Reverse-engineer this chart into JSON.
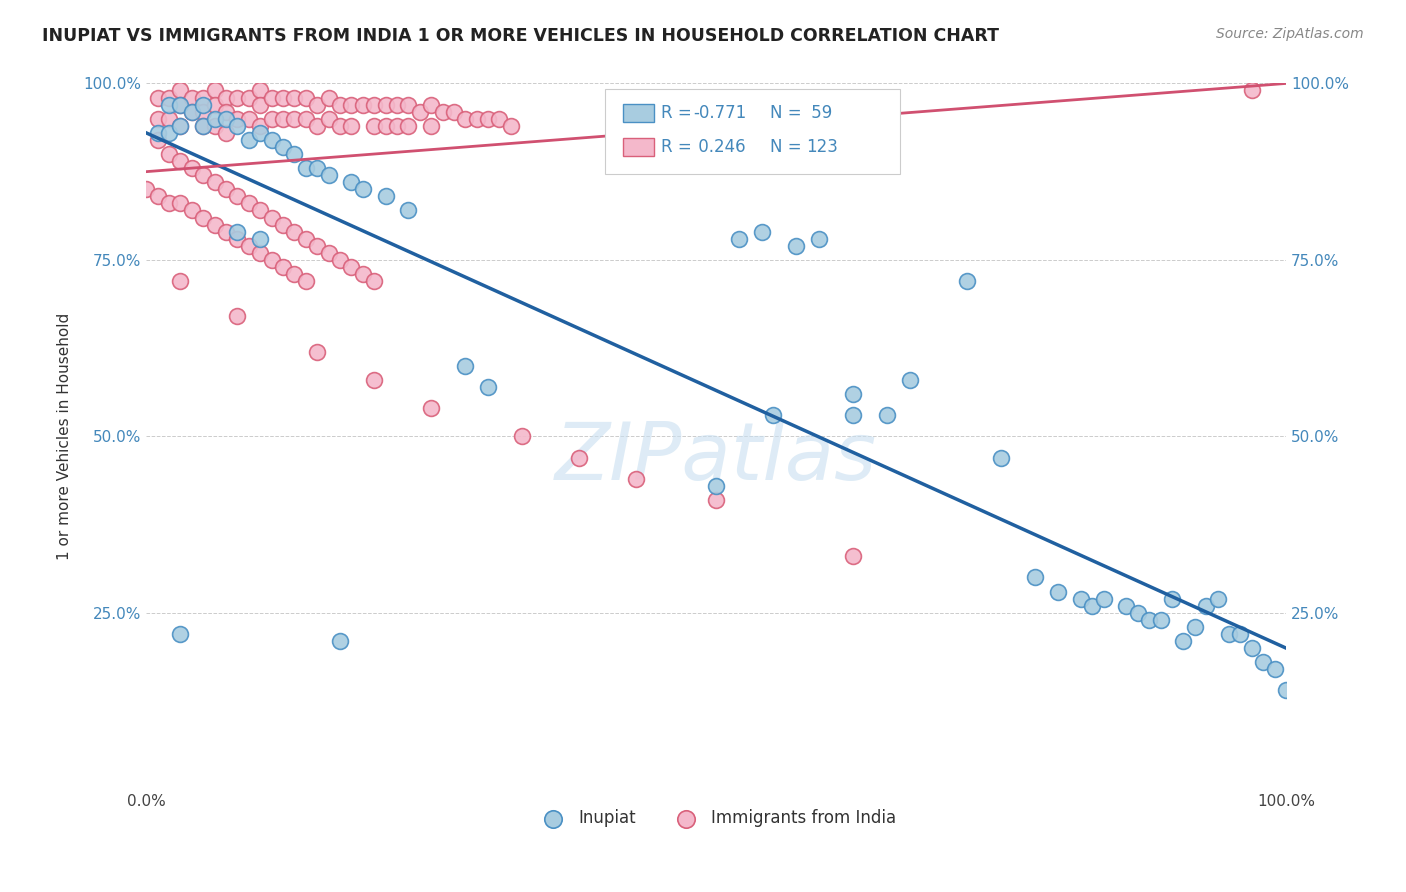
{
  "title": "INUPIAT VS IMMIGRANTS FROM INDIA 1 OR MORE VEHICLES IN HOUSEHOLD CORRELATION CHART",
  "source": "Source: ZipAtlas.com",
  "ylabel": "1 or more Vehicles in Household",
  "xlim": [
    0.0,
    1.0
  ],
  "ylim": [
    0.0,
    1.0
  ],
  "color_inupiat_fill": "#a8cce0",
  "color_inupiat_edge": "#4a90c4",
  "color_india_fill": "#f4b8cb",
  "color_india_edge": "#d9607a",
  "color_line_inupiat": "#2060a0",
  "color_line_india": "#d05070",
  "watermark": "ZIPatlas",
  "inupiat_line_x0": 0.0,
  "inupiat_line_y0": 0.93,
  "inupiat_line_x1": 1.0,
  "inupiat_line_y1": 0.2,
  "india_line_x0": 0.0,
  "india_line_y0": 0.875,
  "india_line_x1": 1.0,
  "india_line_y1": 1.0,
  "inupiat_x": [
    0.01,
    0.02,
    0.02,
    0.03,
    0.03,
    0.04,
    0.05,
    0.05,
    0.06,
    0.07,
    0.08,
    0.09,
    0.1,
    0.11,
    0.12,
    0.13,
    0.14,
    0.15,
    0.16,
    0.18,
    0.19,
    0.21,
    0.23,
    0.08,
    0.1,
    0.52,
    0.54,
    0.57,
    0.59,
    0.62,
    0.65,
    0.72,
    0.78,
    0.8,
    0.82,
    0.83,
    0.84,
    0.86,
    0.87,
    0.88,
    0.89,
    0.9,
    0.91,
    0.92,
    0.93,
    0.94,
    0.95,
    0.96,
    0.97,
    0.98,
    0.99,
    1.0,
    0.03,
    0.17,
    0.28,
    0.3,
    0.5,
    0.55,
    0.62,
    0.67,
    0.75
  ],
  "inupiat_y": [
    0.93,
    0.97,
    0.93,
    0.97,
    0.94,
    0.96,
    0.97,
    0.94,
    0.95,
    0.95,
    0.94,
    0.92,
    0.93,
    0.92,
    0.91,
    0.9,
    0.88,
    0.88,
    0.87,
    0.86,
    0.85,
    0.84,
    0.82,
    0.79,
    0.78,
    0.78,
    0.79,
    0.77,
    0.78,
    0.53,
    0.53,
    0.72,
    0.3,
    0.28,
    0.27,
    0.26,
    0.27,
    0.26,
    0.25,
    0.24,
    0.24,
    0.27,
    0.21,
    0.23,
    0.26,
    0.27,
    0.22,
    0.22,
    0.2,
    0.18,
    0.17,
    0.14,
    0.22,
    0.21,
    0.6,
    0.57,
    0.43,
    0.53,
    0.56,
    0.58,
    0.47
  ],
  "india_x": [
    0.01,
    0.01,
    0.02,
    0.02,
    0.03,
    0.03,
    0.03,
    0.04,
    0.04,
    0.05,
    0.05,
    0.05,
    0.06,
    0.06,
    0.06,
    0.07,
    0.07,
    0.07,
    0.08,
    0.08,
    0.09,
    0.09,
    0.1,
    0.1,
    0.1,
    0.11,
    0.11,
    0.12,
    0.12,
    0.13,
    0.13,
    0.14,
    0.14,
    0.15,
    0.15,
    0.16,
    0.16,
    0.17,
    0.17,
    0.18,
    0.18,
    0.19,
    0.2,
    0.2,
    0.21,
    0.21,
    0.22,
    0.22,
    0.23,
    0.23,
    0.24,
    0.25,
    0.25,
    0.26,
    0.27,
    0.28,
    0.29,
    0.3,
    0.31,
    0.32,
    0.01,
    0.02,
    0.03,
    0.04,
    0.05,
    0.06,
    0.07,
    0.08,
    0.09,
    0.1,
    0.11,
    0.12,
    0.13,
    0.14,
    0.15,
    0.16,
    0.17,
    0.18,
    0.19,
    0.2,
    0.0,
    0.01,
    0.02,
    0.03,
    0.04,
    0.05,
    0.06,
    0.07,
    0.08,
    0.09,
    0.1,
    0.11,
    0.12,
    0.13,
    0.14,
    0.03,
    0.08,
    0.15,
    0.2,
    0.25,
    0.33,
    0.38,
    0.43,
    0.5,
    0.62,
    0.97
  ],
  "india_y": [
    0.98,
    0.95,
    0.98,
    0.95,
    0.99,
    0.97,
    0.94,
    0.98,
    0.96,
    0.98,
    0.96,
    0.94,
    0.99,
    0.97,
    0.94,
    0.98,
    0.96,
    0.93,
    0.98,
    0.95,
    0.98,
    0.95,
    0.99,
    0.97,
    0.94,
    0.98,
    0.95,
    0.98,
    0.95,
    0.98,
    0.95,
    0.98,
    0.95,
    0.97,
    0.94,
    0.98,
    0.95,
    0.97,
    0.94,
    0.97,
    0.94,
    0.97,
    0.97,
    0.94,
    0.97,
    0.94,
    0.97,
    0.94,
    0.97,
    0.94,
    0.96,
    0.97,
    0.94,
    0.96,
    0.96,
    0.95,
    0.95,
    0.95,
    0.95,
    0.94,
    0.92,
    0.9,
    0.89,
    0.88,
    0.87,
    0.86,
    0.85,
    0.84,
    0.83,
    0.82,
    0.81,
    0.8,
    0.79,
    0.78,
    0.77,
    0.76,
    0.75,
    0.74,
    0.73,
    0.72,
    0.85,
    0.84,
    0.83,
    0.83,
    0.82,
    0.81,
    0.8,
    0.79,
    0.78,
    0.77,
    0.76,
    0.75,
    0.74,
    0.73,
    0.72,
    0.72,
    0.67,
    0.62,
    0.58,
    0.54,
    0.5,
    0.47,
    0.44,
    0.41,
    0.33,
    0.99
  ]
}
